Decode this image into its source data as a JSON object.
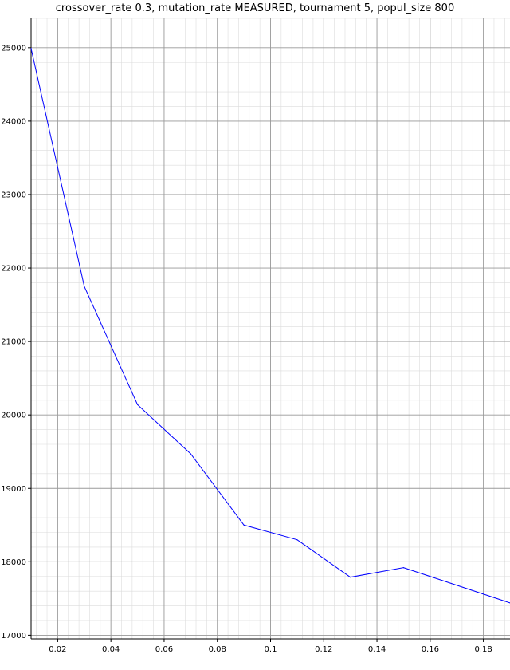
{
  "chart_data": {
    "type": "line",
    "title": "crossover_rate 0.3, mutation_rate MEASURED, tournament 5, popul_size 800",
    "xlabel": "",
    "ylabel": "",
    "xlim": [
      0.01,
      0.19
    ],
    "ylim": [
      16950,
      25400
    ],
    "x_ticks": [
      "0.02",
      "0.04",
      "0.06",
      "0.08",
      "0.1",
      "0.12",
      "0.14",
      "0.16",
      "0.18"
    ],
    "y_ticks": [
      "17000",
      "18000",
      "19000",
      "20000",
      "21000",
      "22000",
      "23000",
      "24000",
      "25000"
    ],
    "grid": true,
    "series": [
      {
        "color": "#0000ff",
        "x": [
          0.01,
          0.03,
          0.05,
          0.07,
          0.09,
          0.11,
          0.13,
          0.15,
          0.19
        ],
        "y": [
          24990,
          21750,
          20140,
          19470,
          18500,
          18300,
          17790,
          17920,
          17440
        ]
      }
    ]
  }
}
